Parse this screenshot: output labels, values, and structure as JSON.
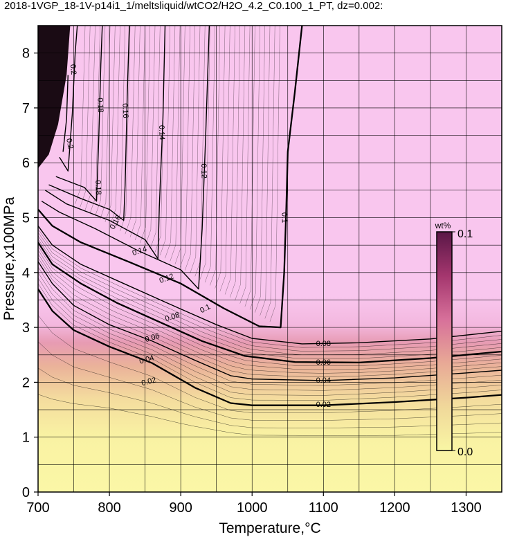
{
  "chart_data": {
    "type": "heatmap",
    "title": "2018-1VGP_18-1V-p14i1_1/meltsliquid/wtCO2/H2O_4.2_C0.100_1_PT, dz=0.002:",
    "xlabel": "Temperature,°C",
    "ylabel": "Pressure,x100MPa",
    "xlim": [
      700,
      1350
    ],
    "ylim": [
      0,
      8.5
    ],
    "xticks": [
      700,
      800,
      900,
      1000,
      1100,
      1200,
      1300
    ],
    "yticks": [
      0,
      1,
      2,
      3,
      4,
      5,
      6,
      7,
      8
    ],
    "grid": true,
    "colorbar": {
      "label": "wt%",
      "min": 0.0,
      "max": 0.1,
      "min_label": "0.0",
      "max_label": "0.1",
      "colors": [
        "#f9f6a4",
        "#f0d89a",
        "#e8a996",
        "#d7709a",
        "#a4366e",
        "#5a1747"
      ]
    },
    "saturated_color": "#f9c6ee",
    "contours": [
      {
        "level": 0.02,
        "label": "0.02",
        "points": [
          [
            700,
            3.7
          ],
          [
            720,
            3.3
          ],
          [
            750,
            2.95
          ],
          [
            800,
            2.65
          ],
          [
            860,
            2.35
          ],
          [
            920,
            1.9
          ],
          [
            970,
            1.62
          ],
          [
            1000,
            1.58
          ],
          [
            1100,
            1.58
          ],
          [
            1200,
            1.64
          ],
          [
            1300,
            1.72
          ],
          [
            1350,
            1.77
          ]
        ]
      },
      {
        "level": 0.04,
        "label": "0.04",
        "points": [
          [
            700,
            4.2
          ],
          [
            720,
            3.8
          ],
          [
            750,
            3.4
          ],
          [
            800,
            3.05
          ],
          [
            860,
            2.75
          ],
          [
            920,
            2.4
          ],
          [
            970,
            2.12
          ],
          [
            1000,
            2.06
          ],
          [
            1100,
            2.03
          ],
          [
            1200,
            2.08
          ],
          [
            1300,
            2.17
          ],
          [
            1350,
            2.22
          ]
        ]
      },
      {
        "level": 0.06,
        "label": "0.06",
        "points": [
          [
            700,
            4.55
          ],
          [
            720,
            4.15
          ],
          [
            760,
            3.8
          ],
          [
            810,
            3.45
          ],
          [
            870,
            3.1
          ],
          [
            930,
            2.75
          ],
          [
            990,
            2.48
          ],
          [
            1060,
            2.37
          ],
          [
            1150,
            2.36
          ],
          [
            1250,
            2.44
          ],
          [
            1350,
            2.56
          ]
        ]
      },
      {
        "level": 0.08,
        "label": "0.08",
        "points": [
          [
            700,
            4.85
          ],
          [
            720,
            4.5
          ],
          [
            760,
            4.15
          ],
          [
            820,
            3.8
          ],
          [
            880,
            3.45
          ],
          [
            950,
            3.05
          ],
          [
            1000,
            2.8
          ],
          [
            1070,
            2.7
          ],
          [
            1150,
            2.72
          ],
          [
            1250,
            2.79
          ],
          [
            1350,
            2.93
          ]
        ]
      },
      {
        "level": 0.1,
        "label": "0.1",
        "points": [
          [
            700,
            5.15
          ],
          [
            720,
            4.85
          ],
          [
            760,
            4.55
          ],
          [
            830,
            4.18
          ],
          [
            900,
            3.8
          ],
          [
            960,
            3.35
          ],
          [
            1010,
            3.02
          ],
          [
            1040,
            3.0
          ],
          [
            1045,
            4.0
          ],
          [
            1048,
            5.2
          ],
          [
            1050,
            6.2
          ],
          [
            1060,
            7.3
          ],
          [
            1070,
            8.5
          ]
        ]
      },
      {
        "level": 0.12,
        "label": "0.12",
        "points": [
          [
            705,
            5.3
          ],
          [
            730,
            5.1
          ],
          [
            780,
            4.8
          ],
          [
            840,
            4.4
          ],
          [
            900,
            4.05
          ],
          [
            925,
            3.7
          ],
          [
            930,
            4.8
          ],
          [
            935,
            6.5
          ],
          [
            940,
            8.5
          ]
        ]
      },
      {
        "level": 0.14,
        "label": "0.14",
        "points": [
          [
            710,
            5.5
          ],
          [
            740,
            5.25
          ],
          [
            800,
            4.95
          ],
          [
            850,
            4.6
          ],
          [
            868,
            4.25
          ],
          [
            870,
            5.2
          ],
          [
            875,
            6.8
          ],
          [
            878,
            8.5
          ]
        ]
      },
      {
        "level": 0.16,
        "label": "0.16",
        "points": [
          [
            715,
            5.6
          ],
          [
            760,
            5.35
          ],
          [
            800,
            5.15
          ],
          [
            820,
            4.95
          ],
          [
            822,
            5.6
          ],
          [
            825,
            7.2
          ],
          [
            828,
            8.5
          ]
        ]
      },
      {
        "level": 0.18,
        "label": "0.18",
        "points": [
          [
            725,
            5.75
          ],
          [
            765,
            5.55
          ],
          [
            782,
            5.3
          ],
          [
            785,
            6.4
          ],
          [
            788,
            7.8
          ],
          [
            790,
            8.5
          ]
        ]
      },
      {
        "level": 0.2,
        "label": "0.2",
        "points": [
          [
            730,
            6.1
          ],
          [
            742,
            5.85
          ],
          [
            748,
            6.9
          ],
          [
            752,
            8.0
          ],
          [
            755,
            8.5
          ]
        ]
      },
      {
        "level": 0.2,
        "label": "0.2",
        "points": [
          [
            735,
            6.2
          ],
          [
            740,
            6.8
          ],
          [
            742,
            7.6
          ]
        ]
      }
    ],
    "contour_labels": [
      {
        "text": "0.02",
        "x": 1100,
        "y": 1.6,
        "angle": 0
      },
      {
        "text": "0.02",
        "x": 855,
        "y": 2.02,
        "angle": 14
      },
      {
        "text": "0.04",
        "x": 1100,
        "y": 2.04,
        "angle": 0
      },
      {
        "text": "0.04",
        "x": 852,
        "y": 2.42,
        "angle": 16
      },
      {
        "text": "0.06",
        "x": 1100,
        "y": 2.37,
        "angle": 0
      },
      {
        "text": "0.06",
        "x": 860,
        "y": 2.82,
        "angle": 16
      },
      {
        "text": "0.08",
        "x": 1100,
        "y": 2.71,
        "angle": 0
      },
      {
        "text": "0.08",
        "x": 888,
        "y": 3.2,
        "angle": 18
      },
      {
        "text": "0.1",
        "x": 934,
        "y": 3.35,
        "angle": 28
      },
      {
        "text": "0.1",
        "x": 1046,
        "y": 5.0,
        "angle": -88
      },
      {
        "text": "0.12",
        "x": 880,
        "y": 3.9,
        "angle": 20
      },
      {
        "text": "0.12",
        "x": 933,
        "y": 5.85,
        "angle": -88
      },
      {
        "text": "0.14",
        "x": 842,
        "y": 4.4,
        "angle": 18
      },
      {
        "text": "0.14",
        "x": 874,
        "y": 6.55,
        "angle": -88
      },
      {
        "text": "0.16",
        "x": 808,
        "y": 4.92,
        "angle": 60
      },
      {
        "text": "0.16",
        "x": 823,
        "y": 6.95,
        "angle": -88
      },
      {
        "text": "0.18",
        "x": 785,
        "y": 5.55,
        "angle": -88
      },
      {
        "text": "0.18",
        "x": 788,
        "y": 7.05,
        "angle": -88
      },
      {
        "text": "0.2",
        "x": 745,
        "y": 6.35,
        "angle": -80
      },
      {
        "text": "0.2",
        "x": 750,
        "y": 7.7,
        "angle": -85
      }
    ]
  }
}
